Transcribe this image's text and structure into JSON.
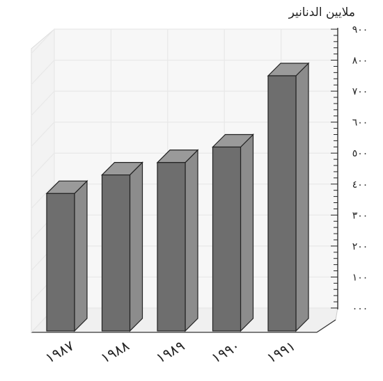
{
  "chart_data": {
    "type": "bar",
    "title": "",
    "xlabel": "",
    "ylabel": "ملايين الدنانير",
    "categories": [
      "١٩٨٧",
      "١٩٨٨",
      "١٩٨٩",
      "١٩٩٠",
      "١٩٩١"
    ],
    "values": [
      410,
      470,
      510,
      560,
      790
    ],
    "ylim": [
      0,
      900
    ],
    "yticks": [
      "٠٠٠",
      "١٠٠",
      "٢٠٠",
      "٣٠٠",
      "٤٠٠",
      "٥٠٠",
      "٦٠٠",
      "٧٠٠",
      "٨٠٠",
      "٩٠٠"
    ],
    "grid": true,
    "style": "3d",
    "colors": {
      "bar_front": "#6e6e6e",
      "bar_side": "#8c8c8c",
      "bar_top": "#9a9a9a",
      "grid": "#e8e8e8",
      "wall": "#f7f7f7",
      "axis": "#222222"
    }
  }
}
